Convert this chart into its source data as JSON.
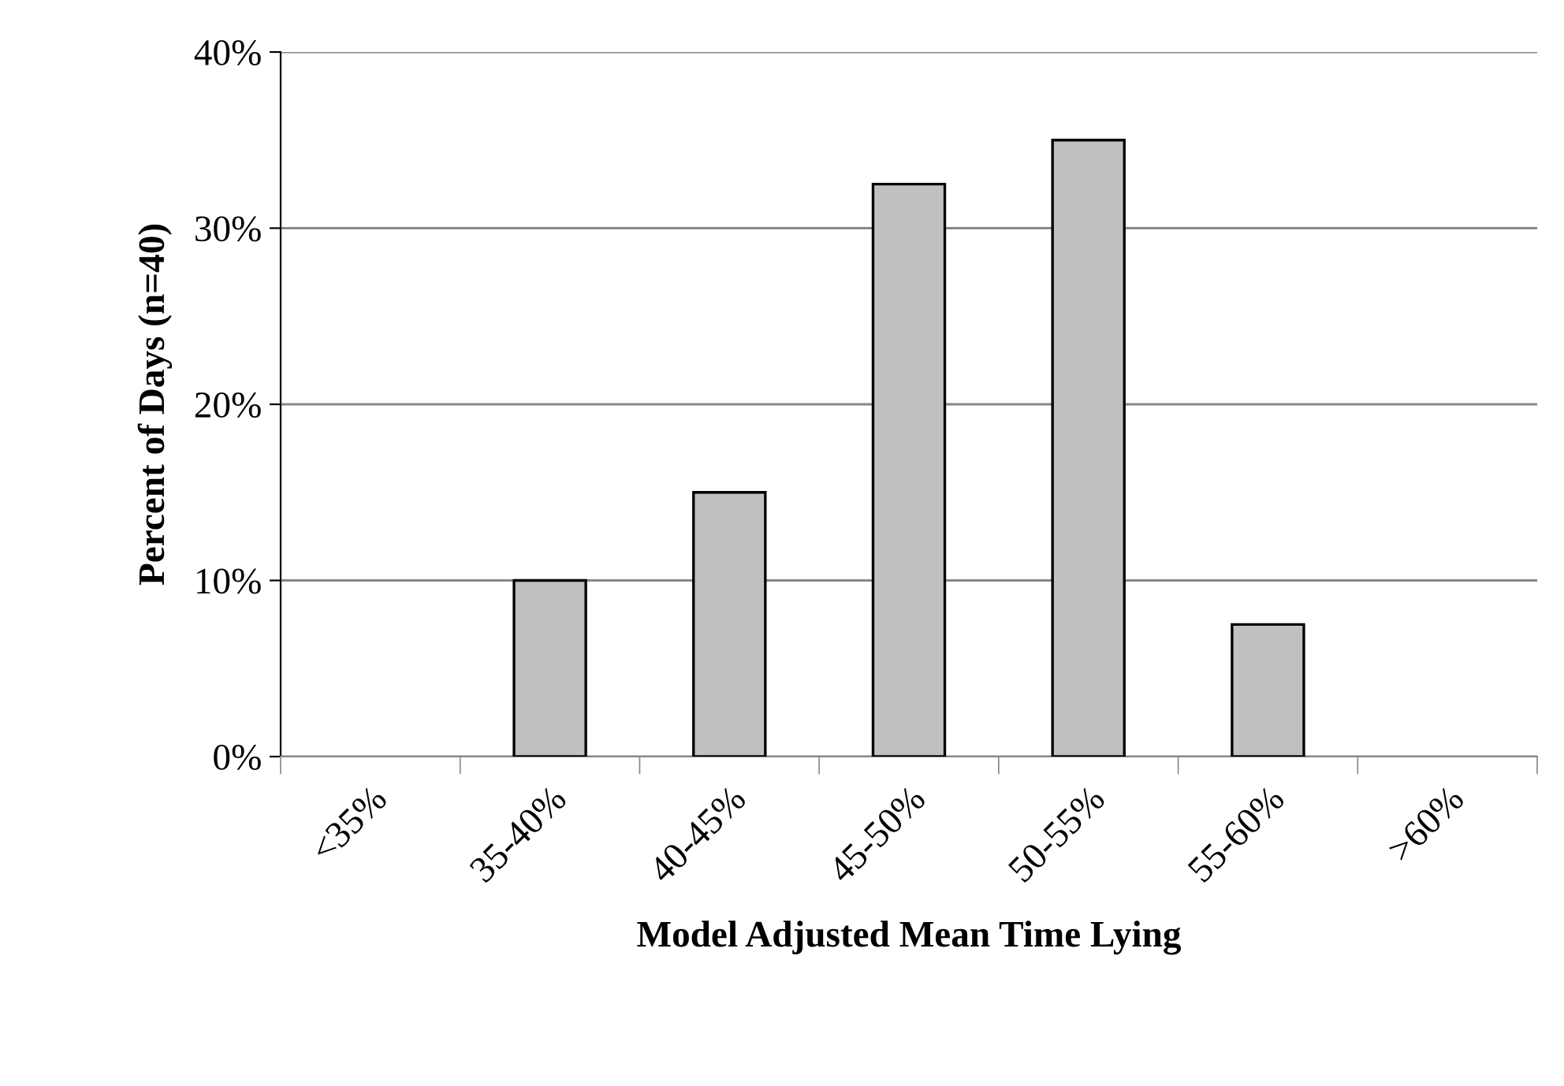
{
  "chart_data": {
    "type": "bar",
    "xlabel": "Model Adjusted Mean Time Lying",
    "ylabel": "Percent of Days (n=40)",
    "categories": [
      "<35%",
      "35-40%",
      "40-45%",
      "45-50%",
      "50-55%",
      "55-60%",
      ">60%"
    ],
    "values": [
      0,
      10,
      15,
      32.5,
      35,
      7.5,
      0
    ],
    "color": "#c0c0c0",
    "ylim": [
      0,
      40
    ],
    "yticks": [
      {
        "value": 0,
        "label": "0%"
      },
      {
        "value": 10,
        "label": "10%"
      },
      {
        "value": 20,
        "label": "20%"
      },
      {
        "value": 30,
        "label": "30%"
      },
      {
        "value": 40,
        "label": "40%"
      }
    ],
    "grid": "y",
    "legend": false
  }
}
